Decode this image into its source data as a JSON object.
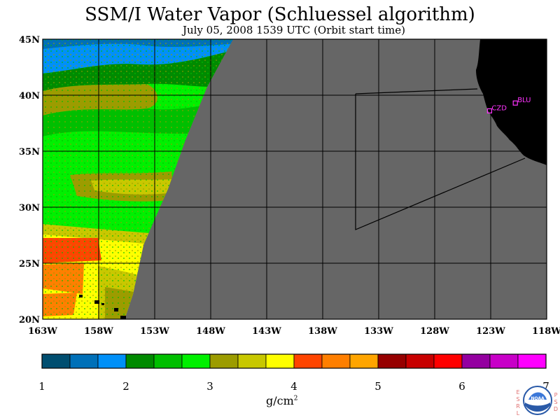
{
  "header": {
    "title": "SSM/I Water Vapor (Schluessel algorithm)",
    "subtitle": "July 05, 2008  1539 UTC  (Orbit start time)"
  },
  "map": {
    "lon_range": [
      -163,
      -118
    ],
    "lat_range": [
      20,
      45
    ],
    "lon_ticks": [
      "163W",
      "158W",
      "153W",
      "148W",
      "143W",
      "138W",
      "133W",
      "128W",
      "123W",
      "118W"
    ],
    "lat_ticks": [
      "45N",
      "40N",
      "35N",
      "30N",
      "25N",
      "20N"
    ],
    "grid": true,
    "no_data_color": "#666666",
    "land_color": "#000000",
    "sites": [
      {
        "label": "CZD",
        "lon": -123.1,
        "lat": 38.6
      },
      {
        "label": "BLU",
        "lon": -120.8,
        "lat": 39.3
      }
    ]
  },
  "colorbar": {
    "units": "g/cm",
    "units_exp": "2",
    "tick_labels": [
      "1",
      "2",
      "3",
      "4",
      "5",
      "6",
      "7"
    ],
    "colors": [
      "#004e70",
      "#0070b8",
      "#0090f8",
      "#008a00",
      "#00bf00",
      "#00f000",
      "#9c9c00",
      "#c8c800",
      "#ffff00",
      "#ff4500",
      "#ff7f00",
      "#ffa500",
      "#960000",
      "#c80000",
      "#ff0000",
      "#9400a0",
      "#c800c8",
      "#ff00ff"
    ]
  },
  "logo": {
    "left_text": "ESRL",
    "right_text": "PSD",
    "badge": "NOAA"
  }
}
